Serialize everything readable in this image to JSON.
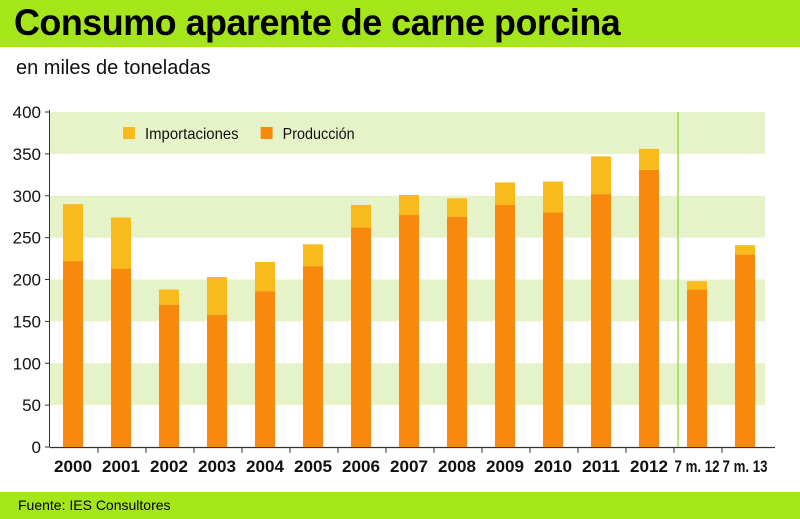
{
  "header": {
    "title": "Consumo aparente de carne porcina",
    "subtitle": "en miles de toneladas"
  },
  "footer": {
    "source": "Fuente: IES Consultores"
  },
  "colors": {
    "banner": "#a5e61a",
    "band": "#e6f3c8",
    "importaciones": "#f9ba1c",
    "produccion": "#f78a0c",
    "divider": "#99dd55"
  },
  "chart_data": {
    "type": "bar",
    "stacked": true,
    "categories": [
      "2000",
      "2001",
      "2002",
      "2003",
      "2004",
      "2005",
      "2006",
      "2007",
      "2008",
      "2009",
      "2010",
      "2011",
      "2012",
      "7 m. 12",
      "7 m. 13"
    ],
    "series": [
      {
        "name": "Producción",
        "color": "#f78a0c",
        "values": [
          222,
          213,
          170,
          158,
          186,
          216,
          262,
          277,
          275,
          289,
          280,
          302,
          331,
          188,
          230
        ]
      },
      {
        "name": "Importaciones",
        "color": "#f9ba1c",
        "values": [
          68,
          61,
          18,
          45,
          35,
          26,
          27,
          24,
          22,
          27,
          37,
          45,
          25,
          10,
          11
        ]
      }
    ],
    "legend_order": [
      "Importaciones",
      "Producción"
    ],
    "legend_position": "top-left",
    "ylim": [
      0,
      400
    ],
    "yticks": [
      0,
      50,
      100,
      150,
      200,
      250,
      300,
      350,
      400
    ],
    "xlabel": "",
    "ylabel": "",
    "grid": "alternating horizontal bands",
    "divider_after_category": "2012"
  }
}
